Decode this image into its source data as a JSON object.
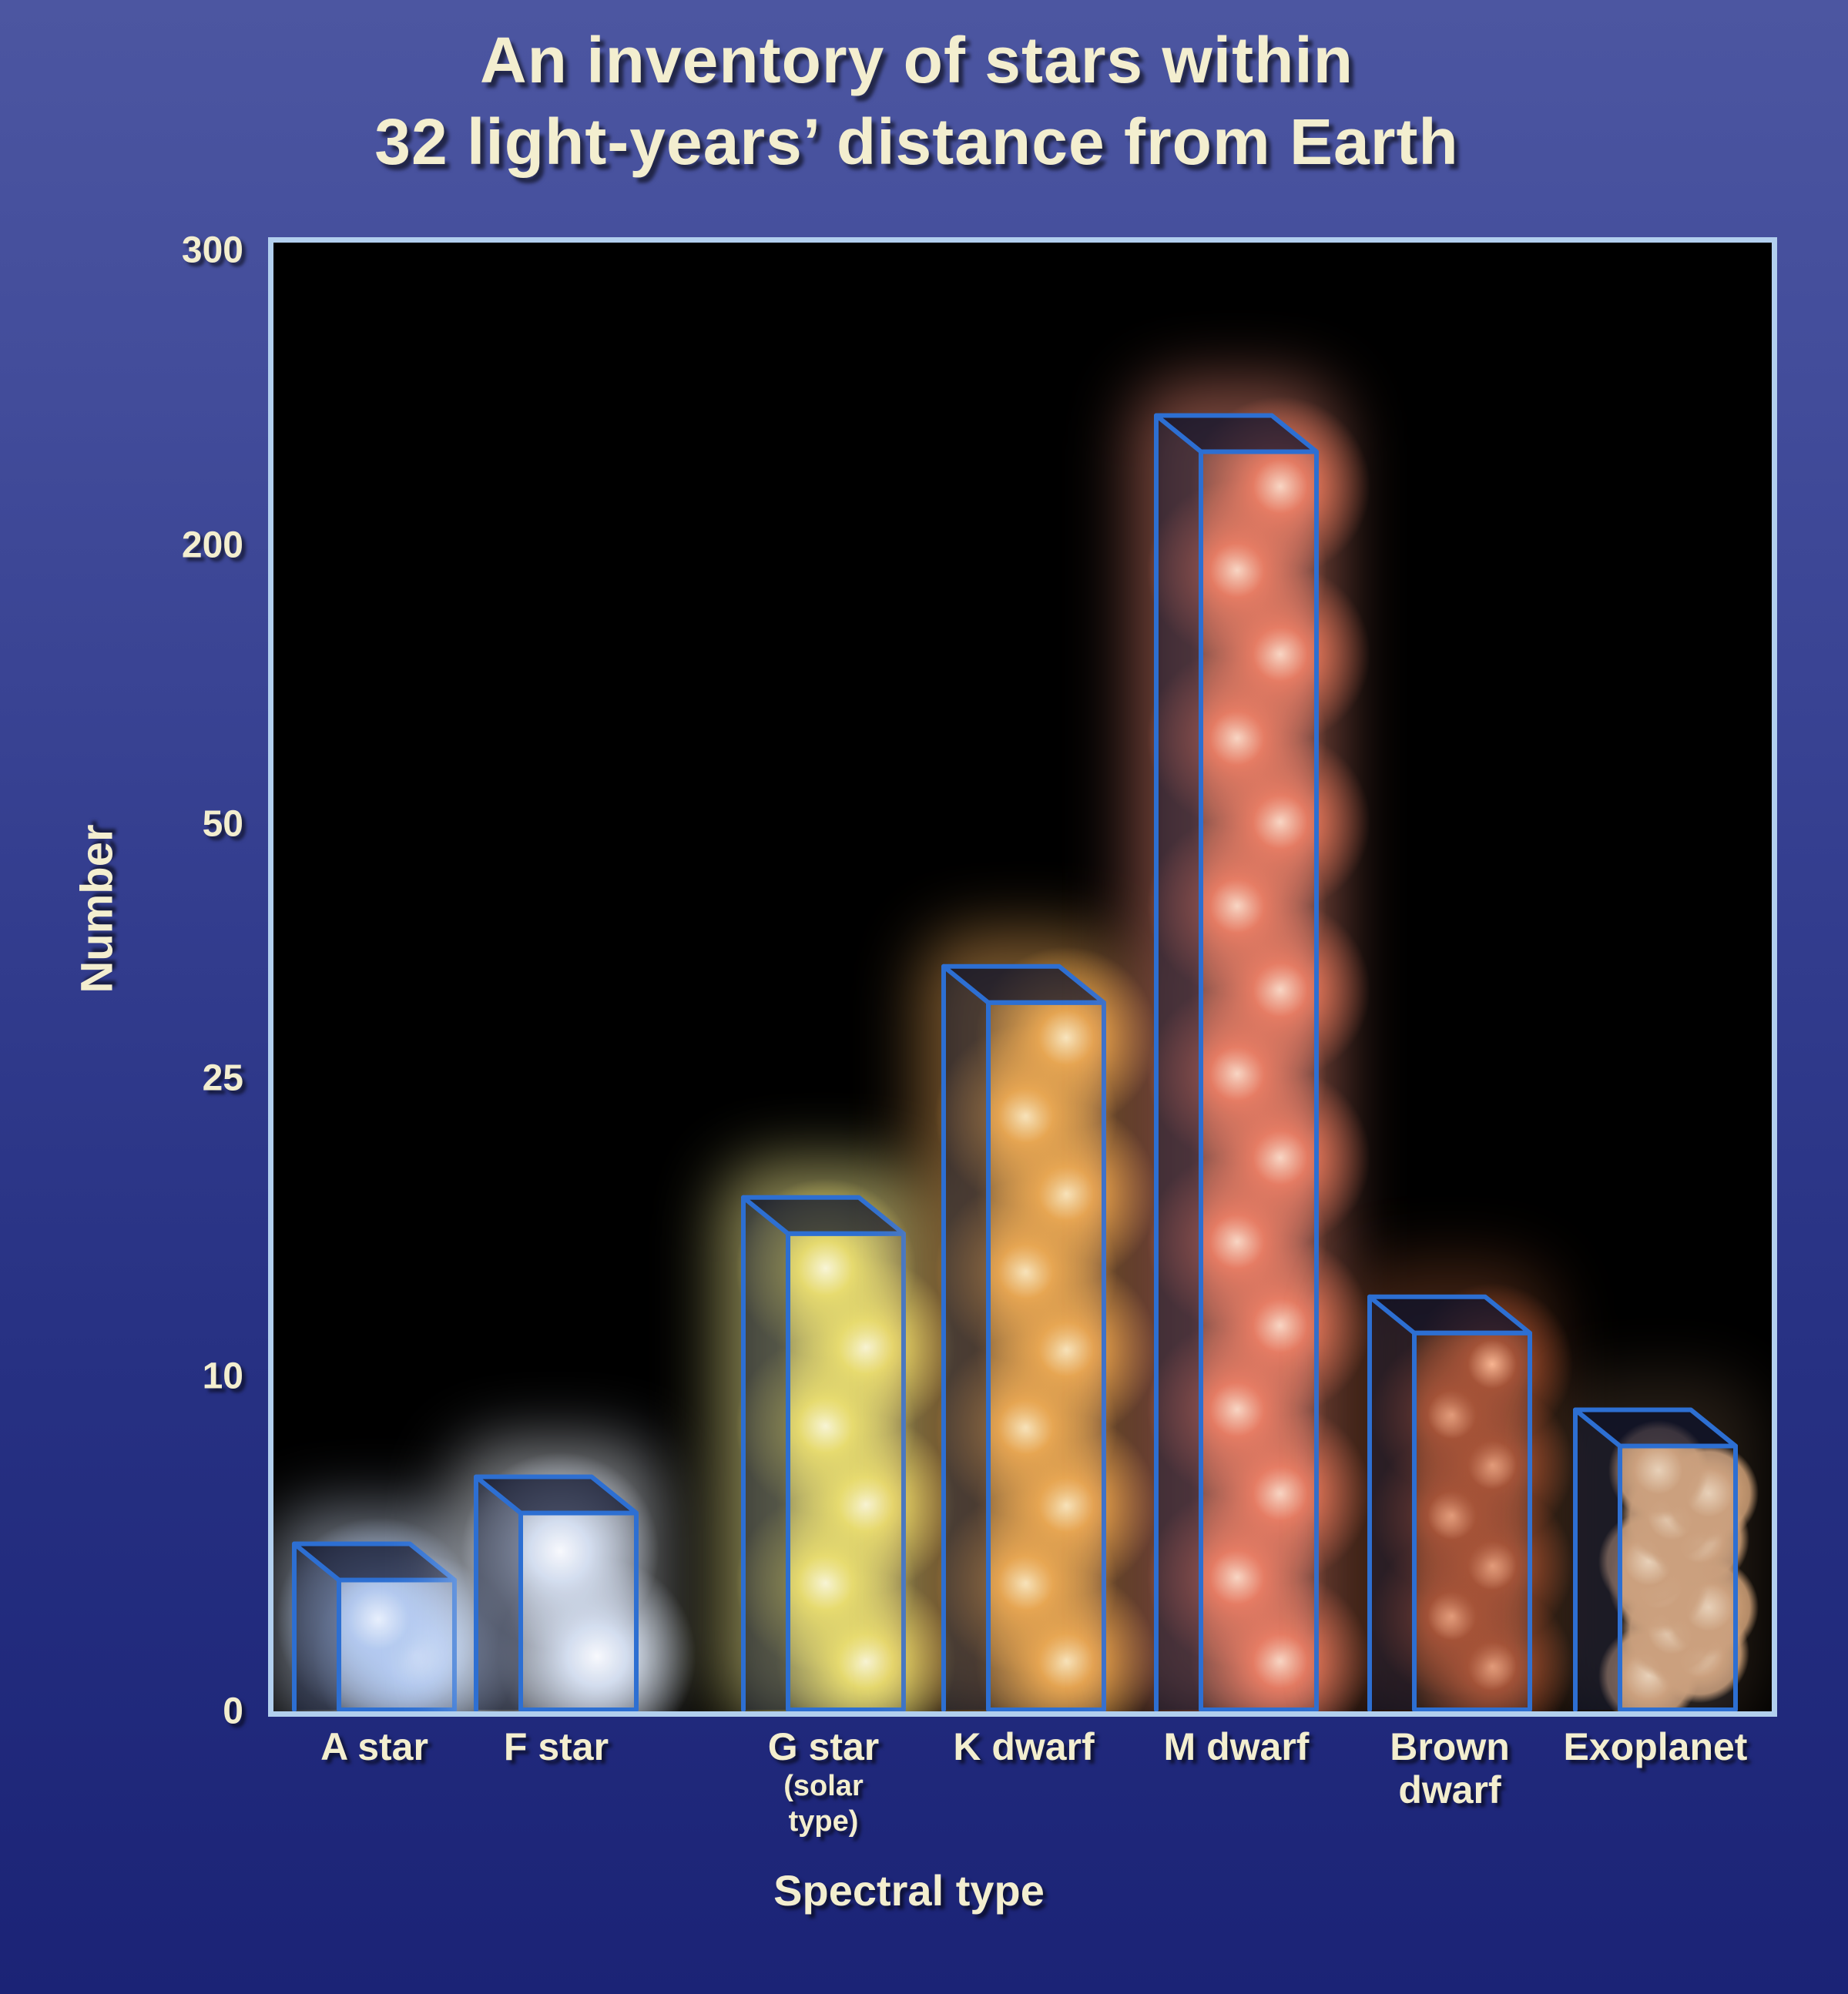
{
  "title": {
    "line1": "An inventory of stars within",
    "line2": "32 light-years’ distance from Earth"
  },
  "axes": {
    "y_label": "Number",
    "x_label": "Spectral type",
    "y_ticks": [
      "300",
      "200",
      "50",
      "25",
      "10",
      "0"
    ]
  },
  "bars": [
    {
      "label": "A star",
      "value": 5,
      "ball_color": "#b6cdf2",
      "core_color": "#eef5ff",
      "glow_color": "#dde9ff"
    },
    {
      "label": "F star",
      "value": 7,
      "ball_color": "#dde7f6",
      "core_color": "#ffffff",
      "glow_color": "#eff4fc"
    },
    {
      "label": "G star",
      "note_lines": [
        "(solar",
        "type)"
      ],
      "value": 19,
      "ball_color": "#f0e268",
      "core_color": "#fffbd6",
      "glow_color": "#f3ea90"
    },
    {
      "label": "K dwarf",
      "value": 36,
      "ball_color": "#f0a848",
      "core_color": "#ffeabc",
      "glow_color": "#f3ad5a"
    },
    {
      "label": "M dwarf",
      "value": 244,
      "ball_color": "#f07b5c",
      "core_color": "#ffd9c2",
      "glow_color": "#f5907a"
    },
    {
      "label": "Brown",
      "label2": "dwarf",
      "value": 14,
      "ball_color": "#a84e2c",
      "core_color": "#ffb68c",
      "glow_color": "#b86238"
    },
    {
      "label": "Exoplanet",
      "value": 9,
      "ball_color": "#cfa077",
      "core_color": "#eed4b6",
      "glow_color": "#cfa077",
      "hard": true
    }
  ],
  "colors": {
    "background_top": "#4c56a1",
    "background_bottom": "#1b2376",
    "plot_background": "#000000",
    "plot_border": "#b2cfee",
    "bar_edge": "#2d6fd2",
    "text": "#f3eecf"
  },
  "chart_data": {
    "type": "bar",
    "title": "An inventory of stars within 32 light-years’ distance from Earth",
    "xlabel": "Spectral type",
    "ylabel": "Number",
    "categories": [
      "A star",
      "F star",
      "G star (solar type)",
      "K dwarf",
      "M dwarf",
      "Brown dwarf",
      "Exoplanet"
    ],
    "values": [
      5,
      7,
      19,
      36,
      244,
      14,
      9
    ],
    "y_tick_values": [
      0,
      10,
      25,
      50,
      200,
      300
    ],
    "ylim": [
      0,
      300
    ],
    "y_scale": "nonlinear (ticks 0, 10, 25, 50, 200, 300 spaced nearly evenly)",
    "grid": false,
    "legend": false,
    "note": "3-D wireframe boxes filled with glowing spheres; values estimated from bar heights against the nonlinear axis"
  }
}
